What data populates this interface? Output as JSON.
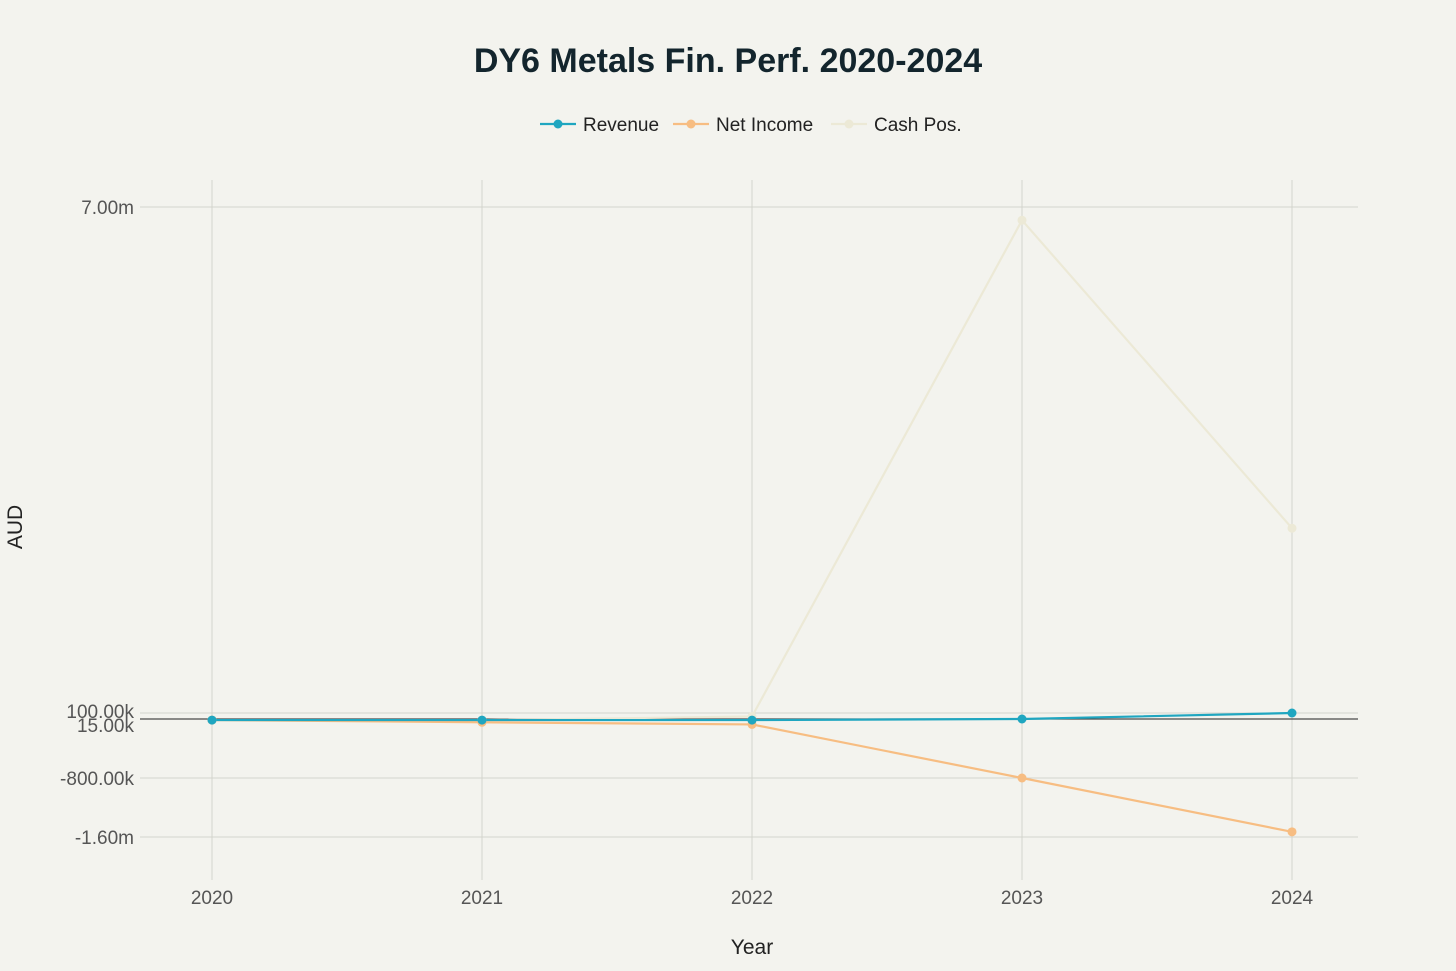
{
  "chart_data": {
    "type": "line",
    "title": "DY6 Metals Fin. Perf. 2020-2024",
    "xlabel": "Year",
    "ylabel": "AUD",
    "x": [
      "2020",
      "2021",
      "2022",
      "2023",
      "2024"
    ],
    "y_ticks": [
      {
        "value": 7000000,
        "label": "7.00m"
      },
      {
        "value": 100000,
        "label": "100.00k"
      },
      {
        "value": 15000,
        "label": "15.00k"
      },
      {
        "value": -800000,
        "label": "-800.00k"
      },
      {
        "value": -1600000,
        "label": "-1.60m"
      }
    ],
    "ylim": [
      -2000000,
      7400000
    ],
    "grid": true,
    "legend_position": "top-center",
    "series": [
      {
        "name": "Revenue",
        "color": "#1fa6c0",
        "values": [
          0,
          0,
          0,
          15000,
          100000
        ]
      },
      {
        "name": "Net Income",
        "color": "#f7bd82",
        "values": [
          0,
          -30000,
          -60000,
          -800000,
          -1530000
        ]
      },
      {
        "name": "Cash Pos.",
        "color": "#ece9d6",
        "values": [
          0,
          0,
          50000,
          6820000,
          2620000
        ]
      }
    ]
  }
}
